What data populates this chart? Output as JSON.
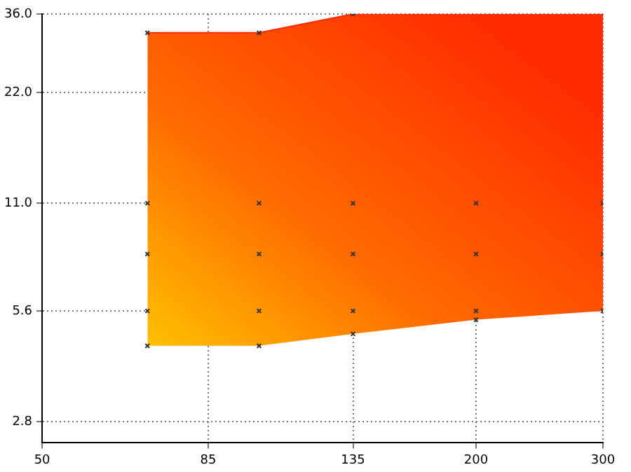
{
  "chart_data": {
    "type": "scatter",
    "log": "xy",
    "grid": true,
    "xlim": [
      50,
      300
    ],
    "xticks": [
      50,
      85,
      135,
      200,
      300
    ],
    "ylim": [
      2.45,
      36
    ],
    "yticks": [
      2.8,
      5.6,
      {
        "value": 11,
        "label": "11.0"
      },
      {
        "value": 22,
        "label": "22.0"
      },
      {
        "value": 36,
        "label": "36.0"
      }
    ],
    "series": [
      {
        "type": "line",
        "color": "#ff2a00",
        "x": [
          70,
          100,
          135,
          200,
          300
        ],
        "values": [
          32,
          32,
          36,
          36,
          36
        ],
        "upper": [
          32,
          32,
          36,
          36,
          36
        ],
        "lower": [
          4.5,
          4.5,
          4.85,
          5.3,
          5.6
        ]
      },
      {
        "marker": "cross",
        "color": "#333333",
        "x": [
          70,
          70,
          70,
          70,
          70,
          100,
          100,
          100,
          100,
          100,
          135,
          135,
          135,
          135,
          135,
          200,
          200,
          200,
          200,
          300,
          300,
          300
        ],
        "values": [
          32,
          11,
          8,
          5.6,
          4.5,
          32,
          11,
          8,
          5.6,
          4.5,
          36,
          11,
          8,
          5.6,
          4.85,
          11,
          8,
          5.6,
          5.3,
          11,
          8,
          5.6
        ]
      }
    ]
  }
}
